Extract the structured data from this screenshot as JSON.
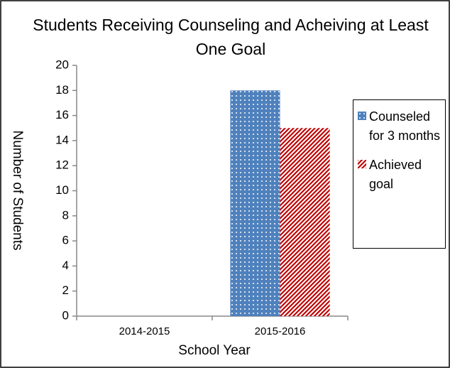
{
  "chart_data": {
    "type": "bar",
    "title": "Students Receiving Counseling and Acheiving at Least One Goal",
    "x_label": "School Year",
    "y_label": "Number of Students",
    "categories": [
      "2014-2015",
      "2015-2016"
    ],
    "series": [
      {
        "name": "Counseled for 3 months",
        "color": "#4f81bd",
        "pattern": "dots",
        "values": [
          0,
          18
        ]
      },
      {
        "name": "Achieved goal",
        "color": "#c00000",
        "pattern": "stripes",
        "values": [
          0,
          15
        ]
      }
    ],
    "ylim": [
      0,
      20
    ],
    "yticks": [
      0,
      2,
      4,
      6,
      8,
      10,
      12,
      14,
      16,
      18,
      20
    ],
    "grid": false,
    "legend": "right"
  }
}
